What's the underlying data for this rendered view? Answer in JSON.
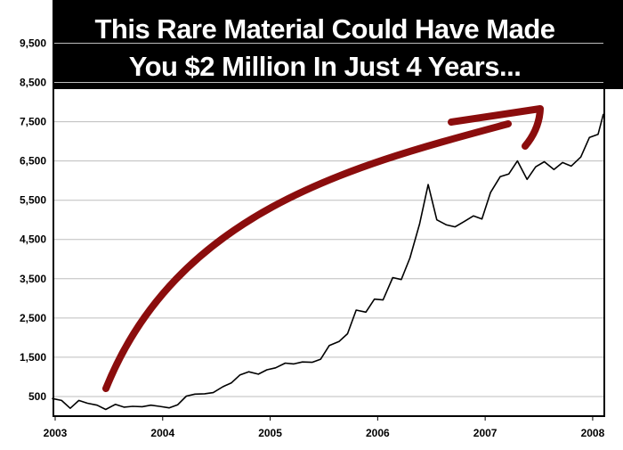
{
  "headline": {
    "line1": "This Rare Material Could Have Made",
    "line2": "You $2 Million In Just 4 Years..."
  },
  "colors": {
    "banner": "#000000",
    "series_line": "#000000",
    "arrow": "#8b0d0d",
    "grid": "#bdbdbd"
  },
  "chart_data": {
    "type": "line",
    "title": "This Rare Material Could Have Made You $2 Million In Just 4 Years...",
    "xlabel": "",
    "ylabel": "",
    "x_ticks": [
      "2003",
      "2004",
      "2005",
      "2006",
      "2007",
      "2008"
    ],
    "y_ticks": [
      "500",
      "1,500",
      "2,500",
      "3,500",
      "4,500",
      "5,500",
      "6,500",
      "7,500",
      "8,500",
      "9,500"
    ],
    "y_tick_values": [
      500,
      1500,
      2500,
      3500,
      4500,
      5500,
      6500,
      7500,
      8500,
      9500
    ],
    "xlim": [
      2003.0,
      2008.1
    ],
    "ylim": [
      0,
      10600
    ],
    "grid": "horizontal",
    "annotation": "upward-trend-arrow",
    "series": [
      {
        "x": [
          2002.97,
          2003.06,
          2003.14,
          2003.22,
          2003.3,
          2003.39,
          2003.47,
          2003.56,
          2003.64,
          2003.72,
          2003.81,
          2003.89,
          2003.97,
          2004.06,
          2004.14,
          2004.22,
          2004.3,
          2004.39,
          2004.47,
          2004.56,
          2004.64,
          2004.72,
          2004.8,
          2004.89,
          2004.97,
          2005.05,
          2005.14,
          2005.22,
          2005.3,
          2005.39,
          2005.47,
          2005.55,
          2005.64,
          2005.72,
          2005.8,
          2005.89,
          2005.97,
          2006.05,
          2006.14,
          2006.22,
          2006.3,
          2006.39,
          2006.47,
          2006.55,
          2006.64,
          2006.72,
          2006.8,
          2006.89,
          2006.97,
          2007.05,
          2007.14,
          2007.22,
          2007.3,
          2007.39,
          2007.47,
          2007.55,
          2007.64,
          2007.72,
          2007.8,
          2007.89,
          2007.97,
          2008.05,
          2008.1
        ],
        "y": [
          450,
          400,
          200,
          400,
          330,
          280,
          170,
          300,
          230,
          250,
          240,
          280,
          250,
          210,
          290,
          510,
          560,
          570,
          600,
          750,
          850,
          1050,
          1130,
          1070,
          1180,
          1230,
          1350,
          1330,
          1380,
          1370,
          1450,
          1800,
          1900,
          2100,
          2700,
          2650,
          2980,
          2960,
          3530,
          3480,
          4030,
          4900,
          5900,
          5000,
          4870,
          4820,
          4950,
          5100,
          5020,
          5700,
          6100,
          6170,
          6500,
          6030,
          6350,
          6480,
          6280,
          6460,
          6370,
          6600,
          7100,
          7180,
          7700
        ]
      }
    ]
  }
}
